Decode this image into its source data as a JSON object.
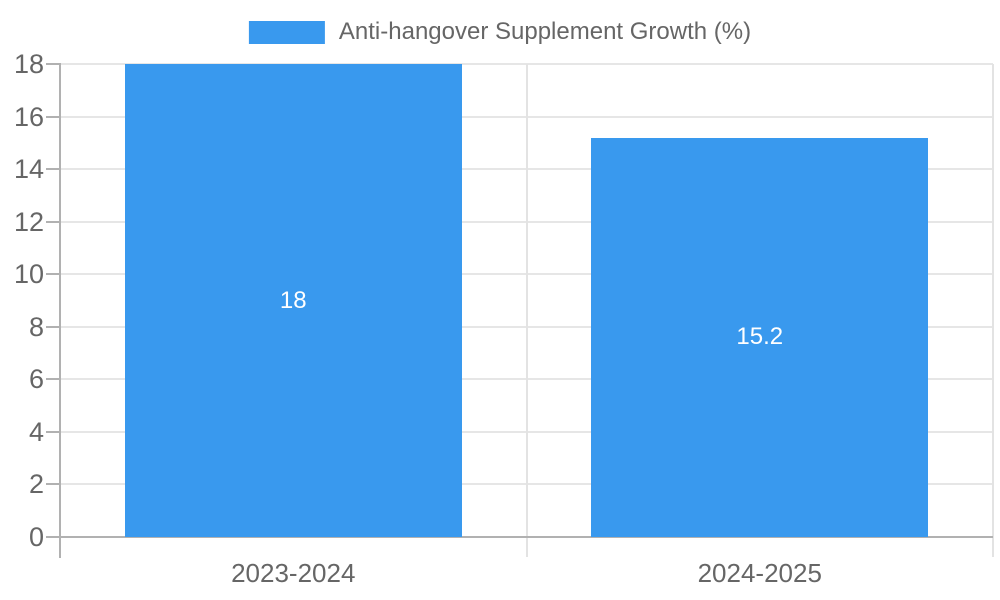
{
  "colors": {
    "bar": "#3999ee",
    "grid": "#e6e6e6",
    "axis": "#b1b1b1",
    "separator": "#e3e3e3",
    "tick_text": "#666666",
    "bar_value_text": "#ffffff"
  },
  "chart_data": {
    "type": "bar",
    "title": "Anti-hangover Supplement Growth (%)",
    "categories": [
      "2023-2024",
      "2024-2025"
    ],
    "series": [
      {
        "name": "Anti-hangover Supplement Growth (%)",
        "values": [
          18,
          15.2
        ],
        "color": "#3999ee"
      }
    ],
    "value_labels": [
      "18",
      "15.2"
    ],
    "value_label_position": "inside-center",
    "xlabel": "",
    "ylabel": "",
    "ylim": [
      0,
      18
    ],
    "yticks": [
      0,
      2,
      4,
      6,
      8,
      10,
      12,
      14,
      16,
      18
    ],
    "grid": true,
    "legend_position": "top-center"
  }
}
